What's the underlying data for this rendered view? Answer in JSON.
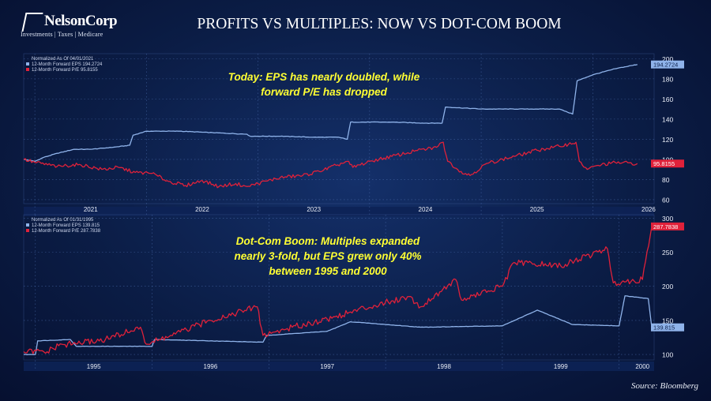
{
  "header": {
    "logo_name": "NelsonCorp",
    "logo_tagline": "Investments | Taxes | Medicare",
    "title": "PROFITS VS MULTIPLES: NOW VS DOT-COM BOOM",
    "source": "Source: Bloomberg"
  },
  "colors": {
    "eps_line": "#8fb3ea",
    "pe_line": "#e0213a",
    "annotation": "#ffff33",
    "background": "#0b1d46"
  },
  "chart_data": [
    {
      "type": "line",
      "title": "",
      "annotation": [
        "Today: EPS has nearly doubled, while",
        "forward P/E has dropped"
      ],
      "legend": [
        "Normalized As Of 04/01/2021",
        "12-Month Forward EPS 194.2724",
        "12-Month Forward P/E 95.8155"
      ],
      "xlabels": [
        "2021",
        "2022",
        "2023",
        "2024",
        "2025",
        "2026"
      ],
      "yticks": [
        60,
        80,
        100,
        120,
        140,
        160,
        180,
        200
      ],
      "ylim": [
        56,
        205
      ],
      "xlim": [
        2020.9,
        2026.55
      ],
      "last_values": {
        "eps": "194.2724",
        "pe": "95.8155"
      },
      "series": [
        {
          "name": "12-Month Forward EPS",
          "points": [
            [
              2020.9,
              100
            ],
            [
              2021.0,
              98
            ],
            [
              2021.08,
              102
            ],
            [
              2021.2,
              106
            ],
            [
              2021.35,
              110
            ],
            [
              2021.5,
              110
            ],
            [
              2021.7,
              112
            ],
            [
              2021.85,
              114
            ],
            [
              2021.88,
              124
            ],
            [
              2022.0,
              128
            ],
            [
              2022.3,
              128
            ],
            [
              2022.5,
              127
            ],
            [
              2022.7,
              126
            ],
            [
              2022.9,
              125
            ],
            [
              2022.93,
              123
            ],
            [
              2023.2,
              123
            ],
            [
              2023.5,
              122
            ],
            [
              2023.72,
              122
            ],
            [
              2023.8,
              120
            ],
            [
              2023.83,
              137
            ],
            [
              2024.2,
              137
            ],
            [
              2024.5,
              136
            ],
            [
              2024.65,
              136
            ],
            [
              2024.68,
              152
            ],
            [
              2025.0,
              150
            ],
            [
              2025.4,
              150
            ],
            [
              2025.7,
              150
            ],
            [
              2025.82,
              145
            ],
            [
              2025.86,
              178
            ],
            [
              2026.0,
              184
            ],
            [
              2026.2,
              190
            ],
            [
              2026.4,
              194.27
            ]
          ]
        },
        {
          "name": "12-Month Forward P/E",
          "points": [
            [
              2020.9,
              100
            ],
            [
              2021.0,
              97
            ],
            [
              2021.2,
              93
            ],
            [
              2021.4,
              95
            ],
            [
              2021.6,
              90
            ],
            [
              2021.75,
              92
            ],
            [
              2021.9,
              87
            ],
            [
              2022.05,
              86
            ],
            [
              2022.2,
              78
            ],
            [
              2022.35,
              74
            ],
            [
              2022.5,
              79
            ],
            [
              2022.65,
              73
            ],
            [
              2022.8,
              76
            ],
            [
              2022.9,
              73
            ],
            [
              2023.0,
              76
            ],
            [
              2023.2,
              82
            ],
            [
              2023.4,
              84
            ],
            [
              2023.55,
              88
            ],
            [
              2023.7,
              94
            ],
            [
              2023.8,
              98
            ],
            [
              2023.85,
              92
            ],
            [
              2024.0,
              98
            ],
            [
              2024.2,
              103
            ],
            [
              2024.4,
              108
            ],
            [
              2024.6,
              112
            ],
            [
              2024.66,
              117
            ],
            [
              2024.7,
              98
            ],
            [
              2024.82,
              88
            ],
            [
              2024.9,
              84
            ],
            [
              2025.05,
              96
            ],
            [
              2025.3,
              103
            ],
            [
              2025.5,
              109
            ],
            [
              2025.7,
              113
            ],
            [
              2025.85,
              117
            ],
            [
              2025.88,
              98
            ],
            [
              2025.95,
              90
            ],
            [
              2026.05,
              94
            ],
            [
              2026.2,
              97
            ],
            [
              2026.4,
              95.82
            ]
          ]
        }
      ]
    },
    {
      "type": "line",
      "title": "",
      "annotation": [
        "Dot-Com Boom: Multiples expanded",
        "nearly 3-fold, but EPS grew only 40%",
        "between 1995 and 2000"
      ],
      "legend": [
        "Normalized As Of 01/31/1995",
        "12-Month Forward EPS 139.815",
        "12-Month Forward P/E 287.7838"
      ],
      "xlabels": [
        "1995",
        "1996",
        "1997",
        "1998",
        "1999",
        "2000"
      ],
      "yticks": [
        100,
        150,
        200,
        250,
        300
      ],
      "ylim": [
        92,
        305
      ],
      "xlim": [
        1994.9,
        2000.3
      ],
      "last_values": {
        "eps": "139.815",
        "pe": "287.7838"
      },
      "series": [
        {
          "name": "12-Month Forward EPS",
          "points": [
            [
              1994.9,
              100
            ],
            [
              1995.0,
              100
            ],
            [
              1995.02,
              120
            ],
            [
              1995.3,
              122
            ],
            [
              1995.35,
              112
            ],
            [
              1996.0,
              112
            ],
            [
              1996.02,
              122
            ],
            [
              1996.5,
              120
            ],
            [
              1996.95,
              118
            ],
            [
              1996.98,
              128
            ],
            [
              1997.5,
              134
            ],
            [
              1997.7,
              148
            ],
            [
              1998.3,
              140
            ],
            [
              1999.0,
              142
            ],
            [
              1999.3,
              165
            ],
            [
              1999.6,
              144
            ],
            [
              2000.0,
              142
            ],
            [
              2000.05,
              186
            ],
            [
              2000.25,
              182
            ],
            [
              2000.28,
              139.82
            ]
          ]
        },
        {
          "name": "12-Month Forward P/E",
          "points": [
            [
              1994.9,
              104
            ],
            [
              1995.1,
              104
            ],
            [
              1995.2,
              113
            ],
            [
              1995.6,
              122
            ],
            [
              1995.9,
              140
            ],
            [
              1995.95,
              115
            ],
            [
              1996.2,
              130
            ],
            [
              1996.5,
              150
            ],
            [
              1996.9,
              170
            ],
            [
              1996.95,
              128
            ],
            [
              1997.2,
              140
            ],
            [
              1997.5,
              152
            ],
            [
              1997.9,
              172
            ],
            [
              1998.2,
              185
            ],
            [
              1998.3,
              170
            ],
            [
              1998.6,
              210
            ],
            [
              1998.65,
              180
            ],
            [
              1999.0,
              200
            ],
            [
              1999.1,
              235
            ],
            [
              1999.5,
              230
            ],
            [
              1999.9,
              255
            ],
            [
              1999.95,
              205
            ],
            [
              2000.2,
              210
            ],
            [
              2000.28,
              287.78
            ]
          ]
        }
      ]
    }
  ]
}
